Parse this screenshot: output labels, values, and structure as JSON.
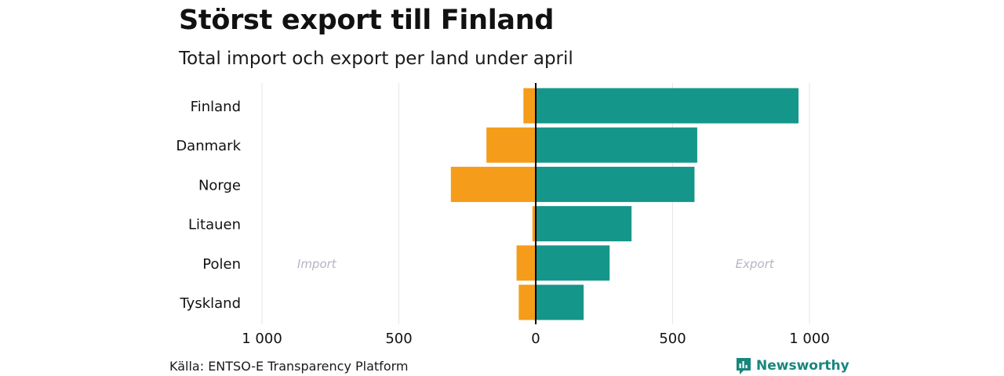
{
  "header": {
    "title": "Störst export till Finland",
    "subtitle": "Total import och export per land under april"
  },
  "footer": {
    "source": "Källa: ENTSO-E Transparency Platform",
    "brand": "Newsworthy"
  },
  "colors": {
    "import": "#f59c1a",
    "export": "#15968a",
    "grid": "#e6e6e6",
    "axis": "#000000",
    "annotation": "#b5b5c3",
    "brand": "#17877d"
  },
  "chart_data": {
    "type": "bar",
    "orientation": "horizontal-diverging",
    "categories": [
      "Finland",
      "Danmark",
      "Norge",
      "Litauen",
      "Polen",
      "Tyskland"
    ],
    "series": [
      {
        "name": "Import",
        "values": [
          45,
          180,
          310,
          12,
          70,
          62
        ]
      },
      {
        "name": "Export",
        "values": [
          960,
          590,
          580,
          350,
          270,
          175
        ]
      }
    ],
    "xlim": [
      -1000,
      1000
    ],
    "xticks": [
      -1000,
      -500,
      0,
      500,
      1000
    ],
    "xtick_labels": [
      "1 000",
      "500",
      "0",
      "500",
      "1 000"
    ],
    "annotations": [
      {
        "text": "Import",
        "x": -800,
        "category": "Polen"
      },
      {
        "text": "Export",
        "x": 800,
        "category": "Polen"
      }
    ],
    "grid": true,
    "legend": "none"
  }
}
